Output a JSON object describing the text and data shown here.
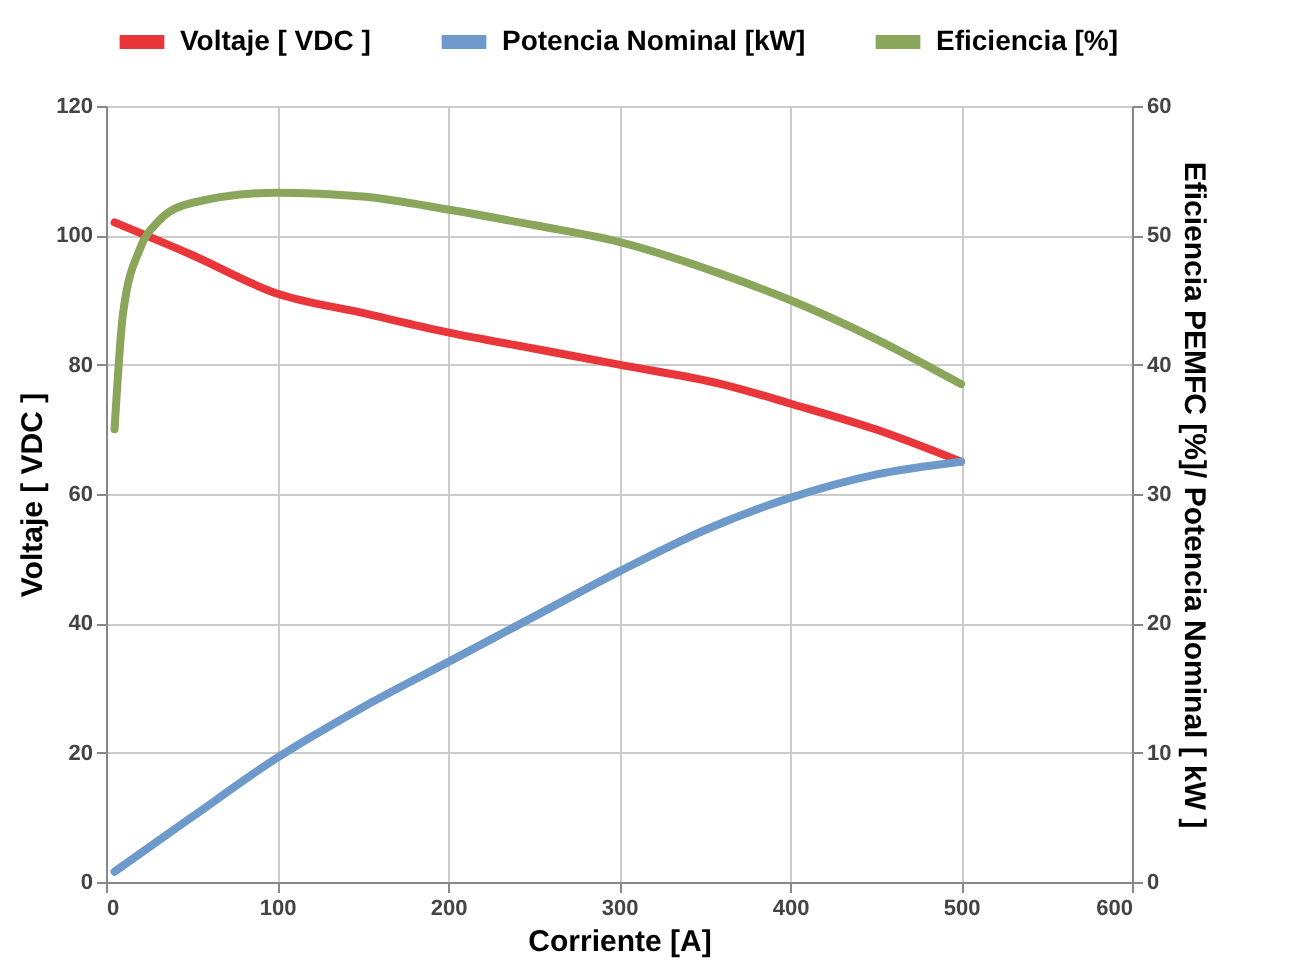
{
  "chart_data": {
    "type": "line",
    "xlabel": "Corriente [A]",
    "ylabel": "Voltaje [ VDC ]",
    "y2label": "Eficiencia PEMFC [%]/ Potencia Nominal [ kW ]",
    "xlim": [
      0,
      600
    ],
    "xticks": [
      0,
      100,
      200,
      300,
      400,
      500,
      600
    ],
    "ylim": [
      0,
      120
    ],
    "yticks": [
      0,
      20,
      40,
      60,
      80,
      100,
      120
    ],
    "y2lim": [
      0,
      60
    ],
    "y2ticks": [
      0,
      10,
      20,
      30,
      40,
      50,
      60
    ],
    "grid": true,
    "legend": "top",
    "line_style": "solid",
    "marker": "none",
    "series": [
      {
        "name": "Voltaje [ VDC ]",
        "color": "#e8363b",
        "x": [
          5,
          50,
          100,
          150,
          200,
          250,
          300,
          360,
          400,
          450,
          500
        ],
        "values": [
          102,
          97,
          91,
          88,
          85,
          82.5,
          80,
          77,
          74,
          70,
          65
        ]
      },
      {
        "name": "Potencia Nominal [kW]",
        "color": "#6d9acb",
        "axis": "y2",
        "x": [
          5,
          50,
          100,
          150,
          200,
          250,
          300,
          350,
          400,
          450,
          500
        ],
        "values": [
          0.8,
          5,
          9.6,
          13.5,
          17,
          20.5,
          24,
          27.2,
          29.7,
          31.5,
          32.5
        ]
      },
      {
        "name": "Eficiencia  [%]",
        "color": "#8aa65a",
        "axis": "y2",
        "x": [
          5,
          10,
          20,
          30,
          50,
          100,
          150,
          200,
          250,
          300,
          360,
          400,
          450,
          500
        ],
        "values": [
          35,
          44,
          49,
          51,
          52.5,
          53.3,
          53,
          52,
          50.8,
          49.5,
          47,
          45,
          42,
          38.5
        ]
      }
    ]
  }
}
